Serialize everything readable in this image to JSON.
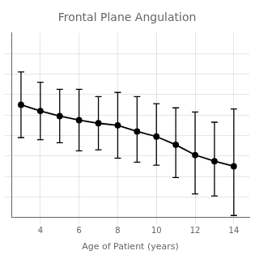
{
  "chart_data": {
    "type": "line",
    "title": "Frontal Plane Angulation",
    "xlabel": "Age of Patient (years)",
    "x": [
      3,
      4,
      5,
      6,
      7,
      8,
      9,
      10,
      11,
      12,
      13,
      14
    ],
    "values": [
      6.5,
      6.2,
      5.95,
      5.75,
      5.6,
      5.5,
      5.2,
      4.95,
      4.55,
      4.05,
      3.75,
      3.5
    ],
    "yerr_upper": [
      1.6,
      1.4,
      1.3,
      1.5,
      1.3,
      1.6,
      1.7,
      1.6,
      1.8,
      2.1,
      1.9,
      2.8
    ],
    "yerr_lower": [
      1.6,
      1.4,
      1.3,
      1.5,
      1.3,
      1.6,
      1.5,
      1.4,
      1.6,
      1.9,
      1.7,
      2.4
    ],
    "xlim": [
      2.5,
      14.8
    ],
    "ylim": [
      1.0,
      10.0
    ],
    "xticks": [
      4,
      6,
      8,
      10,
      12,
      14
    ],
    "yticks": [
      2,
      3,
      4,
      5,
      6,
      7,
      8,
      9
    ],
    "color": "#000000",
    "marker": "circle",
    "grid": true,
    "tick_labels": "x"
  }
}
